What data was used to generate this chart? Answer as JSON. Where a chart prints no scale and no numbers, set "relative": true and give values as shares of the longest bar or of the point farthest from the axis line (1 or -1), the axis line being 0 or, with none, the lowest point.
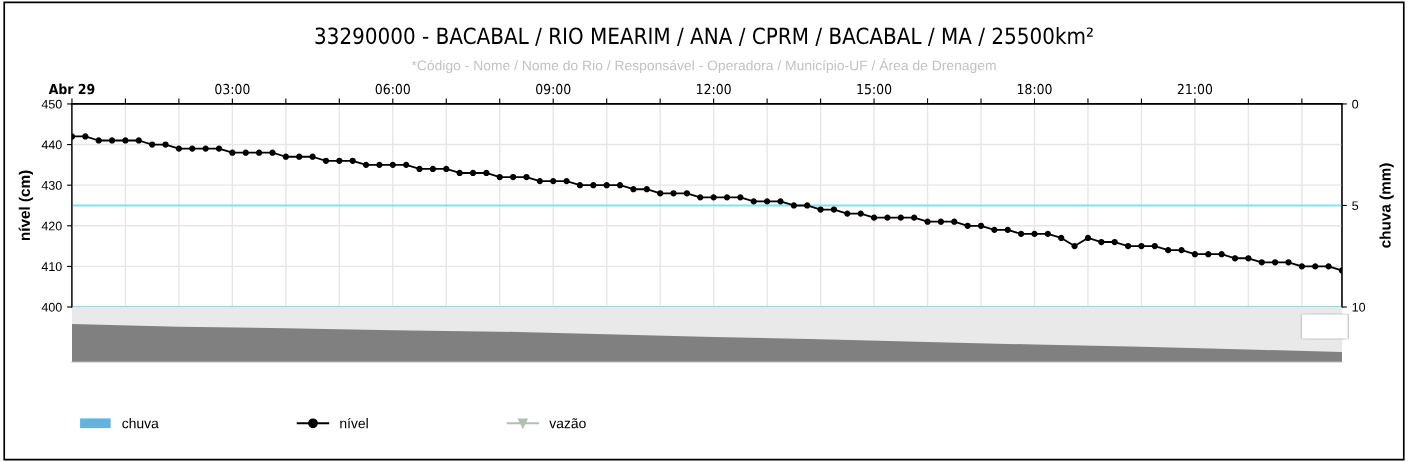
{
  "chart_data": [
    {
      "type": "line",
      "title": "33290000 - BACABAL / RIO MEARIM / ANA / CPRM / BACABAL / MA / 25500km²",
      "subtitle": "*Código - Nome / Nome do Rio / Responsável - Operadora / Município-UF / Área de Drenagem",
      "ylabel": "nível (cm)",
      "y2label": "chuva (mm)",
      "x": [
        0,
        0.25,
        0.5,
        0.75,
        1,
        1.25,
        1.5,
        1.75,
        2,
        2.25,
        2.5,
        2.75,
        3,
        3.25,
        3.5,
        3.75,
        4,
        4.25,
        4.5,
        4.75,
        5,
        5.25,
        5.5,
        5.75,
        6,
        6.25,
        6.5,
        6.75,
        7,
        7.25,
        7.5,
        7.75,
        8,
        8.25,
        8.5,
        8.75,
        9,
        9.25,
        9.5,
        9.75,
        10,
        10.25,
        10.5,
        10.75,
        11,
        11.25,
        11.5,
        11.75,
        12,
        12.25,
        12.5,
        12.75,
        13,
        13.25,
        13.5,
        13.75,
        14,
        14.25,
        14.5,
        14.75,
        15,
        15.25,
        15.5,
        15.75,
        16,
        16.25,
        16.5,
        16.75,
        17,
        17.25,
        17.5,
        17.75,
        18,
        18.25,
        18.5,
        18.75,
        19,
        19.25,
        19.5,
        19.75,
        20,
        20.25,
        20.5,
        20.75,
        21,
        21.25,
        21.5,
        21.75,
        22,
        22.25,
        22.5,
        22.75,
        23,
        23.25,
        23.5,
        23.75
      ],
      "series": [
        {
          "name": "chuva",
          "type": "bar",
          "color": "#63b3dc",
          "values": [
            null,
            null,
            null,
            null,
            null,
            null,
            null,
            null,
            null,
            null,
            null,
            null,
            null,
            null,
            null,
            null,
            null,
            null,
            null,
            null,
            null,
            null,
            null,
            null,
            null,
            null,
            null,
            null,
            null,
            null,
            null,
            null,
            null,
            null,
            null,
            null,
            null,
            null,
            null,
            null,
            null,
            null,
            null,
            null,
            null,
            null,
            null,
            null,
            null,
            null,
            null,
            null,
            null,
            null,
            null,
            null,
            null,
            null,
            null,
            null,
            null,
            null,
            null,
            null,
            null,
            null,
            null,
            null,
            null,
            null,
            null,
            null,
            null,
            null,
            null,
            null,
            null,
            null,
            null,
            null,
            null,
            null,
            null,
            null,
            null,
            null,
            null,
            null,
            null,
            null,
            null,
            null,
            null,
            null,
            null,
            null
          ]
        },
        {
          "name": "nível",
          "type": "line",
          "color": "#000000",
          "marker": "circle",
          "values": [
            442,
            442,
            441,
            441,
            441,
            441,
            440,
            440,
            439,
            439,
            439,
            439,
            438,
            438,
            438,
            438,
            437,
            437,
            437,
            436,
            436,
            436,
            435,
            435,
            435,
            435,
            434,
            434,
            434,
            433,
            433,
            433,
            432,
            432,
            432,
            431,
            431,
            431,
            430,
            430,
            430,
            430,
            429,
            429,
            428,
            428,
            428,
            427,
            427,
            427,
            427,
            426,
            426,
            426,
            425,
            425,
            424,
            424,
            423,
            423,
            422,
            422,
            422,
            422,
            421,
            421,
            421,
            420,
            420,
            419,
            419,
            418,
            418,
            418,
            417,
            415,
            417,
            416,
            416,
            415,
            415,
            415,
            414,
            414,
            413,
            413,
            413,
            412,
            412,
            411,
            411,
            411,
            410,
            410,
            410,
            409
          ]
        },
        {
          "name": "vazão",
          "type": "line",
          "color": "#b4bcb4",
          "marker": "triangle",
          "values": [
            null,
            null,
            null,
            null,
            null,
            null,
            null,
            null,
            null,
            null,
            null,
            null,
            null,
            null,
            null,
            null,
            null,
            null,
            null,
            null,
            null,
            null,
            null,
            null,
            null,
            null,
            null,
            null,
            null,
            null,
            null,
            null,
            null,
            null,
            null,
            null,
            null,
            null,
            null,
            null,
            null,
            null,
            null,
            null,
            null,
            null,
            null,
            null,
            null,
            null,
            null,
            null,
            null,
            null,
            null,
            null,
            null,
            null,
            null,
            null,
            null,
            null,
            null,
            null,
            null,
            null,
            null,
            null,
            null,
            null,
            null,
            null,
            null,
            null,
            null,
            null,
            null,
            null,
            null,
            null,
            null,
            null,
            null,
            null,
            null,
            null,
            null,
            null,
            null,
            null,
            null,
            null,
            null,
            null,
            null,
            null
          ]
        }
      ],
      "xlim": [
        0,
        23.75
      ],
      "xticks": [
        {
          "value": 0,
          "label": "Abr 29"
        },
        {
          "value": 1,
          "label": null
        },
        {
          "value": 2,
          "label": null
        },
        {
          "value": 3,
          "label": "03:00"
        },
        {
          "value": 4,
          "label": null
        },
        {
          "value": 5,
          "label": null
        },
        {
          "value": 6,
          "label": "06:00"
        },
        {
          "value": 7,
          "label": null
        },
        {
          "value": 8,
          "label": null
        },
        {
          "value": 9,
          "label": "09:00"
        },
        {
          "value": 10,
          "label": null
        },
        {
          "value": 11,
          "label": null
        },
        {
          "value": 12,
          "label": "12:00"
        },
        {
          "value": 13,
          "label": null
        },
        {
          "value": 14,
          "label": null
        },
        {
          "value": 15,
          "label": "15:00"
        },
        {
          "value": 16,
          "label": null
        },
        {
          "value": 17,
          "label": null
        },
        {
          "value": 18,
          "label": "18:00"
        },
        {
          "value": 19,
          "label": null
        },
        {
          "value": 20,
          "label": null
        },
        {
          "value": 21,
          "label": "21:00"
        },
        {
          "value": 22,
          "label": null
        },
        {
          "value": 23,
          "label": null
        }
      ],
      "ylim": [
        400,
        450
      ],
      "yticks": [
        400,
        410,
        420,
        430,
        440,
        450
      ],
      "y2lim": [
        10,
        0
      ],
      "y2ticks": [
        0,
        5,
        10
      ],
      "ref_lines": [
        {
          "axis": "y",
          "value": 425,
          "color": "#7fe3ee"
        },
        {
          "axis": "y",
          "value": 400,
          "color": "#7fe3ee"
        }
      ],
      "grid": true,
      "legend": "bottom"
    },
    {
      "type": "area",
      "relative": true,
      "color": "#808080",
      "x": [
        0,
        2,
        4,
        6,
        8,
        10,
        12,
        14,
        16,
        18,
        20,
        22,
        23.75
      ],
      "values": [
        1.0,
        0.93,
        0.89,
        0.84,
        0.8,
        0.73,
        0.66,
        0.6,
        0.53,
        0.46,
        0.4,
        0.33,
        0.26
      ],
      "xlim": [
        0,
        23.75
      ],
      "tick_labels": false
    }
  ]
}
